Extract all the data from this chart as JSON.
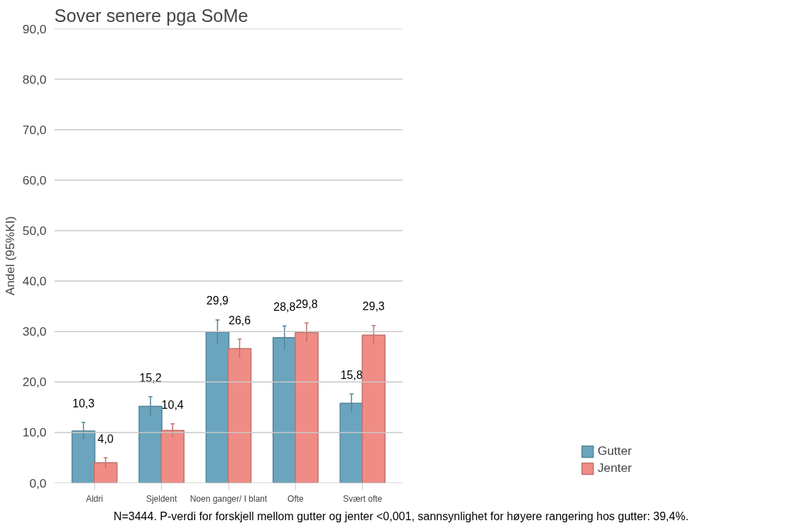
{
  "chart_data": {
    "type": "bar",
    "title": "Sover senere pga SoMe",
    "ylabel": "Andel (95%KI)",
    "categories": [
      "Aldri",
      "Sjeldent",
      "Noen ganger/ I blant",
      "Ofte",
      "Svært ofte"
    ],
    "series": [
      {
        "name": "Gutter",
        "color": "#6aa5bd",
        "values": [
          10.3,
          15.2,
          29.9,
          28.8,
          15.8
        ],
        "errors": [
          1.7,
          1.9,
          2.4,
          2.3,
          1.8
        ],
        "value_labels": [
          "10,3",
          "15,2",
          "29,9",
          "28,8",
          "15,8"
        ]
      },
      {
        "name": "Jenter",
        "color": "#f08c86",
        "values": [
          4.0,
          10.4,
          26.6,
          29.8,
          29.3
        ],
        "errors": [
          1.0,
          1.3,
          1.9,
          1.9,
          1.9
        ],
        "value_labels": [
          "4,0",
          "10,4",
          "26,6",
          "29,8",
          "29,3"
        ]
      }
    ],
    "ylim": [
      0,
      90
    ],
    "yticks": [
      {
        "value": 0,
        "label": "0,0"
      },
      {
        "value": 10,
        "label": "10,0"
      },
      {
        "value": 20,
        "label": "20,0"
      },
      {
        "value": 30,
        "label": "30,0"
      },
      {
        "value": 40,
        "label": "40,0"
      },
      {
        "value": 50,
        "label": "50,0"
      },
      {
        "value": 60,
        "label": "60,0"
      },
      {
        "value": 70,
        "label": "70,0"
      },
      {
        "value": 80,
        "label": "80,0"
      },
      {
        "value": 90,
        "label": "90,0"
      }
    ],
    "grid": "y",
    "legend": "bottom right",
    "annotations": [
      "N=3444. P-verdi for forskjell mellom gutter og jenter <0,001, sannsynlighet for høyere rangering hos gutter: 39,4%."
    ]
  }
}
